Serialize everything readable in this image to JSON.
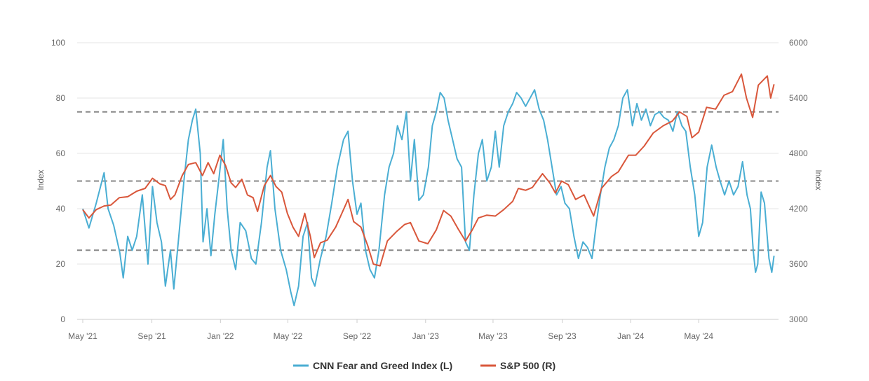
{
  "chart_data": {
    "type": "line",
    "title": "",
    "x_ticks": [
      "May '21",
      "Sep '21",
      "Jan '22",
      "May '22",
      "Sep '22",
      "Jan '23",
      "May '23",
      "Sep '23",
      "Jan '24",
      "May '24"
    ],
    "x_range": [
      "2021-05-01",
      "2024-09-15"
    ],
    "y_left": {
      "label": "Index",
      "lim": [
        0,
        100
      ],
      "ticks": [
        0,
        20,
        40,
        60,
        80,
        100
      ]
    },
    "y_right": {
      "label": "Index",
      "lim": [
        3000,
        6000
      ],
      "ticks": [
        3000,
        3600,
        4200,
        4800,
        5400,
        6000
      ]
    },
    "reference_lines_left": [
      25,
      50,
      75
    ],
    "grid": true,
    "legend_position": "bottom",
    "colors": {
      "fear_greed": "#4aaed3",
      "sp500": "#d9573b",
      "grid": "#e6e6e6",
      "reference": "#888888"
    },
    "series": [
      {
        "name": "CNN Fear and Greed Index (L)",
        "axis": "left",
        "points": [
          [
            "2021-05-01",
            40
          ],
          [
            "2021-05-12",
            33
          ],
          [
            "2021-05-25",
            42
          ],
          [
            "2021-06-08",
            53
          ],
          [
            "2021-06-15",
            40
          ],
          [
            "2021-06-25",
            34
          ],
          [
            "2021-07-06",
            24
          ],
          [
            "2021-07-12",
            15
          ],
          [
            "2021-07-20",
            30
          ],
          [
            "2021-07-28",
            25
          ],
          [
            "2021-08-05",
            30
          ],
          [
            "2021-08-15",
            45
          ],
          [
            "2021-08-25",
            20
          ],
          [
            "2021-09-02",
            48
          ],
          [
            "2021-09-10",
            35
          ],
          [
            "2021-09-18",
            28
          ],
          [
            "2021-09-25",
            12
          ],
          [
            "2021-10-04",
            25
          ],
          [
            "2021-10-10",
            11
          ],
          [
            "2021-10-18",
            28
          ],
          [
            "2021-10-28",
            50
          ],
          [
            "2021-11-05",
            65
          ],
          [
            "2021-11-12",
            72
          ],
          [
            "2021-11-18",
            76
          ],
          [
            "2021-11-26",
            60
          ],
          [
            "2021-12-01",
            28
          ],
          [
            "2021-12-08",
            40
          ],
          [
            "2021-12-15",
            23
          ],
          [
            "2021-12-22",
            38
          ],
          [
            "2021-12-30",
            52
          ],
          [
            "2022-01-06",
            65
          ],
          [
            "2022-01-13",
            40
          ],
          [
            "2022-01-20",
            25
          ],
          [
            "2022-01-28",
            18
          ],
          [
            "2022-02-05",
            35
          ],
          [
            "2022-02-15",
            32
          ],
          [
            "2022-02-25",
            22
          ],
          [
            "2022-03-05",
            20
          ],
          [
            "2022-03-15",
            35
          ],
          [
            "2022-03-25",
            55
          ],
          [
            "2022-03-31",
            61
          ],
          [
            "2022-04-08",
            40
          ],
          [
            "2022-04-18",
            25
          ],
          [
            "2022-04-28",
            18
          ],
          [
            "2022-05-06",
            10
          ],
          [
            "2022-05-12",
            5
          ],
          [
            "2022-05-20",
            12
          ],
          [
            "2022-05-28",
            30
          ],
          [
            "2022-06-05",
            35
          ],
          [
            "2022-06-12",
            15
          ],
          [
            "2022-06-18",
            12
          ],
          [
            "2022-06-28",
            22
          ],
          [
            "2022-07-08",
            30
          ],
          [
            "2022-07-18",
            42
          ],
          [
            "2022-07-28",
            55
          ],
          [
            "2022-08-08",
            65
          ],
          [
            "2022-08-16",
            68
          ],
          [
            "2022-08-24",
            50
          ],
          [
            "2022-09-01",
            38
          ],
          [
            "2022-09-08",
            42
          ],
          [
            "2022-09-16",
            25
          ],
          [
            "2022-09-24",
            18
          ],
          [
            "2022-10-02",
            15
          ],
          [
            "2022-10-10",
            25
          ],
          [
            "2022-10-20",
            45
          ],
          [
            "2022-10-28",
            55
          ],
          [
            "2022-11-05",
            60
          ],
          [
            "2022-11-12",
            70
          ],
          [
            "2022-11-20",
            65
          ],
          [
            "2022-11-28",
            75
          ],
          [
            "2022-12-05",
            50
          ],
          [
            "2022-12-12",
            65
          ],
          [
            "2022-12-20",
            43
          ],
          [
            "2022-12-28",
            45
          ],
          [
            "2023-01-06",
            55
          ],
          [
            "2023-01-13",
            70
          ],
          [
            "2023-01-20",
            75
          ],
          [
            "2023-01-27",
            82
          ],
          [
            "2023-02-03",
            80
          ],
          [
            "2023-02-10",
            72
          ],
          [
            "2023-02-18",
            65
          ],
          [
            "2023-02-26",
            58
          ],
          [
            "2023-03-06",
            55
          ],
          [
            "2023-03-13",
            28
          ],
          [
            "2023-03-20",
            25
          ],
          [
            "2023-03-28",
            45
          ],
          [
            "2023-04-05",
            60
          ],
          [
            "2023-04-12",
            65
          ],
          [
            "2023-04-20",
            50
          ],
          [
            "2023-04-28",
            55
          ],
          [
            "2023-05-05",
            68
          ],
          [
            "2023-05-12",
            55
          ],
          [
            "2023-05-20",
            70
          ],
          [
            "2023-05-28",
            75
          ],
          [
            "2023-06-05",
            78
          ],
          [
            "2023-06-12",
            82
          ],
          [
            "2023-06-20",
            80
          ],
          [
            "2023-06-28",
            77
          ],
          [
            "2023-07-06",
            80
          ],
          [
            "2023-07-14",
            83
          ],
          [
            "2023-07-22",
            76
          ],
          [
            "2023-07-30",
            72
          ],
          [
            "2023-08-06",
            65
          ],
          [
            "2023-08-14",
            55
          ],
          [
            "2023-08-22",
            45
          ],
          [
            "2023-08-30",
            48
          ],
          [
            "2023-09-06",
            42
          ],
          [
            "2023-09-14",
            40
          ],
          [
            "2023-09-22",
            30
          ],
          [
            "2023-09-30",
            22
          ],
          [
            "2023-10-08",
            28
          ],
          [
            "2023-10-16",
            26
          ],
          [
            "2023-10-24",
            22
          ],
          [
            "2023-11-01",
            35
          ],
          [
            "2023-11-08",
            45
          ],
          [
            "2023-11-16",
            55
          ],
          [
            "2023-11-24",
            62
          ],
          [
            "2023-12-02",
            65
          ],
          [
            "2023-12-10",
            70
          ],
          [
            "2023-12-18",
            80
          ],
          [
            "2023-12-26",
            83
          ],
          [
            "2024-01-04",
            70
          ],
          [
            "2024-01-12",
            78
          ],
          [
            "2024-01-20",
            72
          ],
          [
            "2024-01-28",
            76
          ],
          [
            "2024-02-05",
            70
          ],
          [
            "2024-02-13",
            74
          ],
          [
            "2024-02-21",
            75
          ],
          [
            "2024-02-29",
            73
          ],
          [
            "2024-03-08",
            72
          ],
          [
            "2024-03-16",
            68
          ],
          [
            "2024-03-24",
            75
          ],
          [
            "2024-04-01",
            70
          ],
          [
            "2024-04-08",
            68
          ],
          [
            "2024-04-16",
            55
          ],
          [
            "2024-04-24",
            45
          ],
          [
            "2024-05-01",
            30
          ],
          [
            "2024-05-08",
            35
          ],
          [
            "2024-05-16",
            55
          ],
          [
            "2024-05-24",
            63
          ],
          [
            "2024-06-01",
            55
          ],
          [
            "2024-06-08",
            50
          ],
          [
            "2024-06-16",
            45
          ],
          [
            "2024-06-24",
            50
          ],
          [
            "2024-07-02",
            45
          ],
          [
            "2024-07-10",
            48
          ],
          [
            "2024-07-18",
            57
          ],
          [
            "2024-07-26",
            45
          ],
          [
            "2024-08-01",
            40
          ],
          [
            "2024-08-06",
            25
          ],
          [
            "2024-08-10",
            17
          ],
          [
            "2024-08-14",
            20
          ],
          [
            "2024-08-20",
            46
          ],
          [
            "2024-08-26",
            42
          ],
          [
            "2024-09-03",
            22
          ],
          [
            "2024-09-08",
            17
          ],
          [
            "2024-09-12",
            23
          ]
        ]
      },
      {
        "name": "S&P 500 (R)",
        "axis": "right",
        "points": [
          [
            "2021-05-01",
            4190
          ],
          [
            "2021-05-12",
            4100
          ],
          [
            "2021-05-25",
            4190
          ],
          [
            "2021-06-08",
            4230
          ],
          [
            "2021-06-20",
            4240
          ],
          [
            "2021-07-05",
            4320
          ],
          [
            "2021-07-20",
            4330
          ],
          [
            "2021-08-05",
            4390
          ],
          [
            "2021-08-20",
            4420
          ],
          [
            "2021-09-02",
            4530
          ],
          [
            "2021-09-15",
            4470
          ],
          [
            "2021-09-25",
            4450
          ],
          [
            "2021-10-04",
            4300
          ],
          [
            "2021-10-12",
            4350
          ],
          [
            "2021-10-25",
            4560
          ],
          [
            "2021-11-05",
            4680
          ],
          [
            "2021-11-18",
            4700
          ],
          [
            "2021-11-30",
            4560
          ],
          [
            "2021-12-10",
            4700
          ],
          [
            "2021-12-20",
            4580
          ],
          [
            "2021-12-31",
            4780
          ],
          [
            "2022-01-10",
            4670
          ],
          [
            "2022-01-20",
            4480
          ],
          [
            "2022-01-28",
            4430
          ],
          [
            "2022-02-08",
            4520
          ],
          [
            "2022-02-18",
            4350
          ],
          [
            "2022-02-28",
            4320
          ],
          [
            "2022-03-08",
            4170
          ],
          [
            "2022-03-20",
            4450
          ],
          [
            "2022-03-31",
            4560
          ],
          [
            "2022-04-10",
            4440
          ],
          [
            "2022-04-20",
            4380
          ],
          [
            "2022-04-30",
            4150
          ],
          [
            "2022-05-10",
            4000
          ],
          [
            "2022-05-20",
            3900
          ],
          [
            "2022-05-31",
            4150
          ],
          [
            "2022-06-10",
            3900
          ],
          [
            "2022-06-17",
            3670
          ],
          [
            "2022-06-28",
            3830
          ],
          [
            "2022-07-10",
            3860
          ],
          [
            "2022-07-25",
            4000
          ],
          [
            "2022-08-05",
            4150
          ],
          [
            "2022-08-16",
            4300
          ],
          [
            "2022-08-26",
            4060
          ],
          [
            "2022-09-08",
            4000
          ],
          [
            "2022-09-20",
            3800
          ],
          [
            "2022-09-30",
            3600
          ],
          [
            "2022-10-12",
            3580
          ],
          [
            "2022-10-25",
            3850
          ],
          [
            "2022-11-10",
            3950
          ],
          [
            "2022-11-25",
            4030
          ],
          [
            "2022-12-05",
            4050
          ],
          [
            "2022-12-20",
            3850
          ],
          [
            "2023-01-05",
            3820
          ],
          [
            "2023-01-20",
            3970
          ],
          [
            "2023-02-02",
            4180
          ],
          [
            "2023-02-15",
            4120
          ],
          [
            "2023-02-28",
            3980
          ],
          [
            "2023-03-13",
            3850
          ],
          [
            "2023-03-25",
            3970
          ],
          [
            "2023-04-05",
            4100
          ],
          [
            "2023-04-20",
            4130
          ],
          [
            "2023-05-05",
            4120
          ],
          [
            "2023-05-20",
            4190
          ],
          [
            "2023-06-05",
            4280
          ],
          [
            "2023-06-15",
            4420
          ],
          [
            "2023-06-28",
            4400
          ],
          [
            "2023-07-10",
            4430
          ],
          [
            "2023-07-28",
            4580
          ],
          [
            "2023-08-10",
            4480
          ],
          [
            "2023-08-20",
            4370
          ],
          [
            "2023-08-31",
            4500
          ],
          [
            "2023-09-12",
            4460
          ],
          [
            "2023-09-25",
            4300
          ],
          [
            "2023-10-10",
            4350
          ],
          [
            "2023-10-27",
            4120
          ],
          [
            "2023-11-10",
            4420
          ],
          [
            "2023-11-28",
            4550
          ],
          [
            "2023-12-10",
            4600
          ],
          [
            "2023-12-28",
            4780
          ],
          [
            "2024-01-10",
            4780
          ],
          [
            "2024-01-25",
            4880
          ],
          [
            "2024-02-10",
            5020
          ],
          [
            "2024-02-28",
            5100
          ],
          [
            "2024-03-15",
            5150
          ],
          [
            "2024-03-28",
            5250
          ],
          [
            "2024-04-10",
            5200
          ],
          [
            "2024-04-19",
            4970
          ],
          [
            "2024-05-01",
            5030
          ],
          [
            "2024-05-15",
            5300
          ],
          [
            "2024-05-31",
            5280
          ],
          [
            "2024-06-15",
            5430
          ],
          [
            "2024-06-30",
            5470
          ],
          [
            "2024-07-16",
            5660
          ],
          [
            "2024-07-25",
            5400
          ],
          [
            "2024-08-05",
            5190
          ],
          [
            "2024-08-15",
            5540
          ],
          [
            "2024-08-31",
            5640
          ],
          [
            "2024-09-06",
            5400
          ],
          [
            "2024-09-12",
            5550
          ]
        ]
      }
    ]
  }
}
